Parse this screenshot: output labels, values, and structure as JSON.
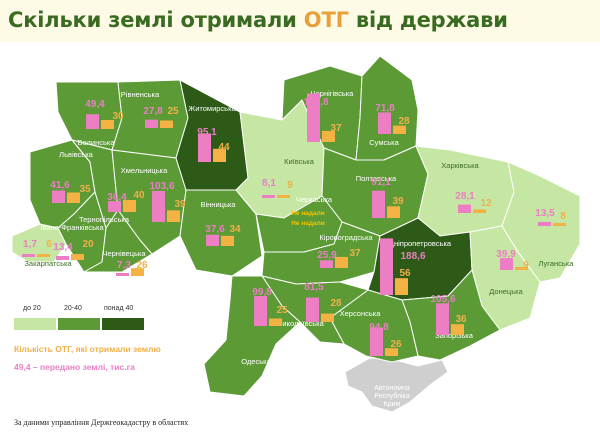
{
  "title": {
    "before": "Скільки землі отримали ",
    "accent": "ОТГ",
    "after": " від держави"
  },
  "colors": {
    "low": "#c6e6a4",
    "mid": "#5b9a35",
    "high": "#2d5a17",
    "pink_bar": "#ee7ec3",
    "orange_bar": "#f4b244",
    "pink_text": "#e97fc4",
    "orange_text": "#f0b04a",
    "crimea": "#cfcfcf"
  },
  "legend": {
    "labels": [
      "до 20",
      "20-40",
      "понад 40"
    ],
    "count_label": "Кількість ОТГ, які отримали землю",
    "area_label": "49,4 – передано землі, тис.га"
  },
  "source": "За даними управління Держгеокадастру в областях",
  "crimea_label": [
    "Автономна",
    "Республіка",
    "Крим"
  ],
  "regions": [
    {
      "name": "Волинська",
      "area": 49.4,
      "area_text": "49,4",
      "otg": 30,
      "otg_text": "30",
      "cat": "mid"
    },
    {
      "name": "Рівненська",
      "area": 27.8,
      "area_text": "27,8",
      "otg": 25,
      "otg_text": "25",
      "cat": "mid"
    },
    {
      "name": "Житомирська",
      "area": 95.1,
      "area_text": "95,1",
      "otg": 44,
      "otg_text": "44",
      "cat": "high"
    },
    {
      "name": "Чернігівська",
      "area": 161.8,
      "area_text": "161,8",
      "otg": 37,
      "otg_text": "37",
      "cat": "mid"
    },
    {
      "name": "Сумська",
      "area": 71.8,
      "area_text": "71,8",
      "otg": 28,
      "otg_text": "28",
      "cat": "mid"
    },
    {
      "name": "Київська",
      "area": 8.1,
      "area_text": "8,1",
      "otg": 9,
      "otg_text": "9",
      "cat": "low"
    },
    {
      "name": "Харківська",
      "area": 28.1,
      "area_text": "28,1",
      "otg": 12,
      "otg_text": "12",
      "cat": "low"
    },
    {
      "name": "Луганська",
      "area": 13.5,
      "area_text": "13,5",
      "otg": 8,
      "otg_text": "8",
      "cat": "low"
    },
    {
      "name": "Львівська",
      "area": 41.6,
      "area_text": "41,6",
      "otg": 35,
      "otg_text": "35",
      "cat": "mid"
    },
    {
      "name": "Тернопільська",
      "area": 36.4,
      "area_text": "36,4",
      "otg": 40,
      "otg_text": "40",
      "cat": "mid"
    },
    {
      "name": "Хмельницька",
      "area": 103.6,
      "area_text": "103,6",
      "otg": 39,
      "otg_text": "39",
      "cat": "mid"
    },
    {
      "name": "Вінницька",
      "area": 37.6,
      "area_text": "37,6",
      "otg": 34,
      "otg_text": "34",
      "cat": "mid"
    },
    {
      "name": "Черкаська",
      "area": null,
      "area_text": "Не надали",
      "otg": null,
      "otg_text": "Не надали",
      "cat": "mid"
    },
    {
      "name": "Полтавська",
      "area": 91.1,
      "area_text": "91,1",
      "otg": 39,
      "otg_text": "39",
      "cat": "mid"
    },
    {
      "name": "Закарпатська",
      "area": 1.7,
      "area_text": "1,7",
      "otg": 6,
      "otg_text": "6",
      "cat": "low"
    },
    {
      "name": "Івано-Франківська",
      "area": 13.4,
      "area_text": "13,4",
      "otg": 20,
      "otg_text": "20",
      "cat": "mid"
    },
    {
      "name": "Чернівецька",
      "area": 7.3,
      "area_text": "7,3",
      "otg": 26,
      "otg_text": "26",
      "cat": "mid"
    },
    {
      "name": "Кіровоградська",
      "area": 25.9,
      "area_text": "25,9",
      "otg": 37,
      "otg_text": "37",
      "cat": "mid"
    },
    {
      "name": "Дніпропетровська",
      "area": 188.6,
      "area_text": "188,6",
      "otg": 56,
      "otg_text": "56",
      "cat": "high"
    },
    {
      "name": "Донецька",
      "area": 39.9,
      "area_text": "39,9",
      "otg": 9,
      "otg_text": "9",
      "cat": "low"
    },
    {
      "name": "Одеська",
      "area": 99.8,
      "area_text": "99,8",
      "otg": 25,
      "otg_text": "25",
      "cat": "mid"
    },
    {
      "name": "Миколаївська",
      "area": 81.5,
      "area_text": "81,5",
      "otg": 28,
      "otg_text": "28",
      "cat": "mid"
    },
    {
      "name": "Херсонська",
      "area": 94.8,
      "area_text": "94,8",
      "otg": 26,
      "otg_text": "26",
      "cat": "mid"
    },
    {
      "name": "Запорізька",
      "area": 105.6,
      "area_text": "105,6",
      "otg": 36,
      "otg_text": "36",
      "cat": "mid"
    }
  ]
}
